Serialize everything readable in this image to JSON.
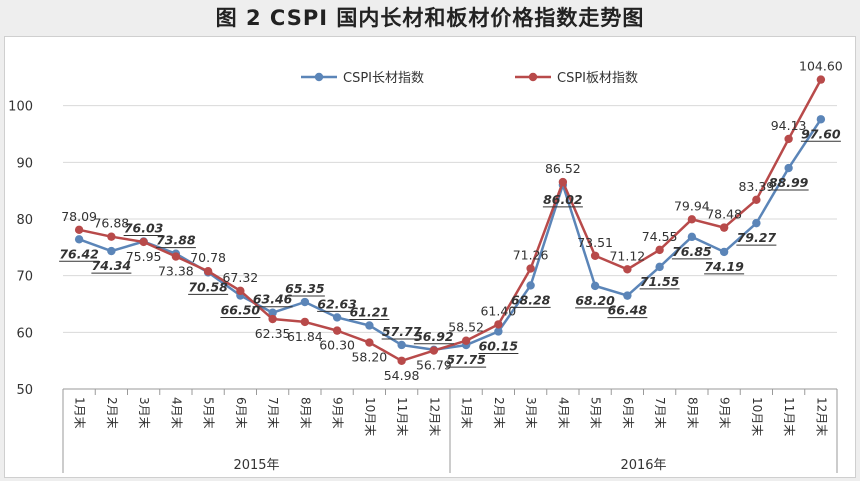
{
  "title": "图 2  CSPI 国内长材和板材价格指数走势图",
  "chart_data": {
    "type": "line",
    "ylim": [
      50,
      110
    ],
    "yticks": [
      50,
      60,
      70,
      80,
      90,
      100
    ],
    "categories": [
      "1月末",
      "2月末",
      "3月末",
      "4月末",
      "5月末",
      "6月末",
      "7月末",
      "8月末",
      "9月末",
      "10月末",
      "11月末",
      "12月末",
      "1月末",
      "2月末",
      "3月末",
      "4月末",
      "5月末",
      "6月末",
      "7月末",
      "8月末",
      "9月末",
      "10月末",
      "11月末",
      "12月末"
    ],
    "groups": [
      {
        "label": "2015年",
        "start": 0,
        "end": 11
      },
      {
        "label": "2016年",
        "start": 12,
        "end": 23
      }
    ],
    "legend_position": "top",
    "grid": true,
    "series": [
      {
        "name": "CSPI长材指数",
        "color": "#5b85b8",
        "bold_labels": true,
        "values": [
          76.42,
          74.34,
          76.03,
          73.88,
          70.58,
          66.5,
          63.46,
          65.35,
          62.63,
          61.21,
          57.77,
          56.92,
          57.75,
          60.15,
          68.28,
          86.02,
          68.2,
          66.48,
          71.55,
          76.85,
          74.19,
          79.27,
          88.99,
          97.6
        ]
      },
      {
        "name": "CSPI板材指数",
        "color": "#b84a4a",
        "bold_labels": false,
        "values": [
          78.09,
          76.88,
          75.95,
          73.38,
          70.78,
          67.32,
          62.35,
          61.84,
          60.3,
          58.2,
          54.98,
          56.79,
          58.52,
          61.4,
          71.26,
          86.52,
          73.51,
          71.12,
          74.55,
          79.94,
          78.48,
          83.39,
          94.13,
          104.6
        ]
      }
    ]
  }
}
